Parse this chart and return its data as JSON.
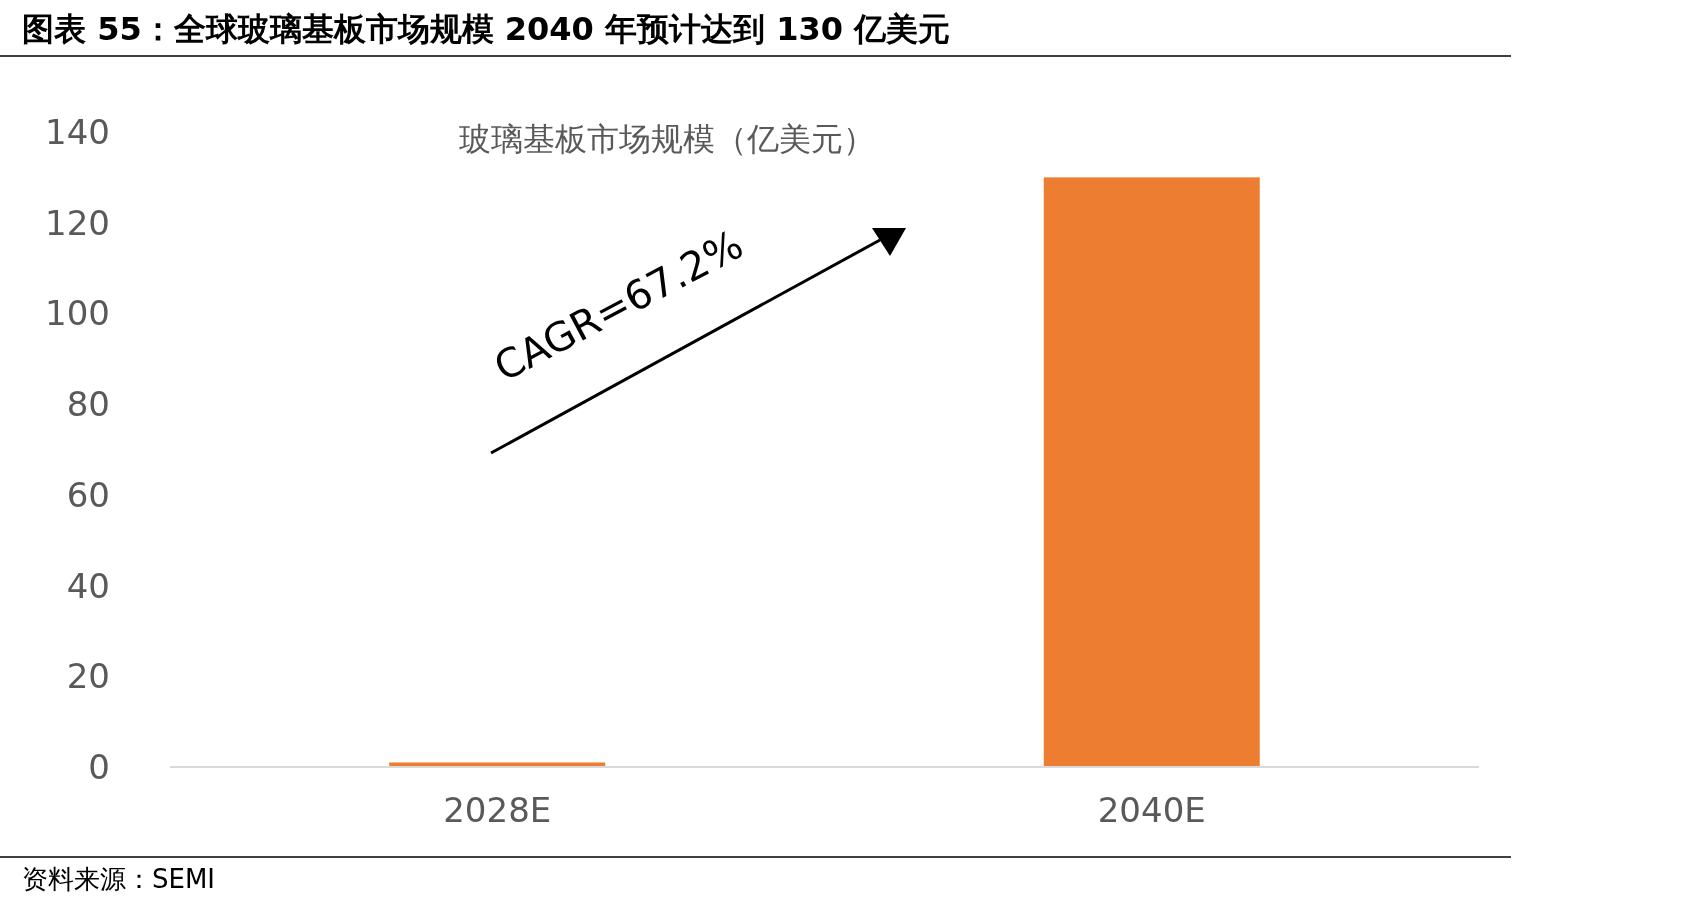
{
  "chart_data": {
    "type": "bar",
    "title": "图表 55：全球玻璃基板市场规模 2040 年预计达到 130 亿美元",
    "subtitle": "玻璃基板市场规模（亿美元）",
    "categories": [
      "2028E",
      "2040E"
    ],
    "values": [
      1,
      130
    ],
    "color": "#ed7d31",
    "ylim": [
      0,
      140
    ],
    "yticks": [
      0,
      20,
      40,
      60,
      80,
      100,
      120,
      140
    ],
    "grid": false,
    "annotations": [
      "CAGR=67.2%",
      "资料来源：SEMI"
    ]
  }
}
